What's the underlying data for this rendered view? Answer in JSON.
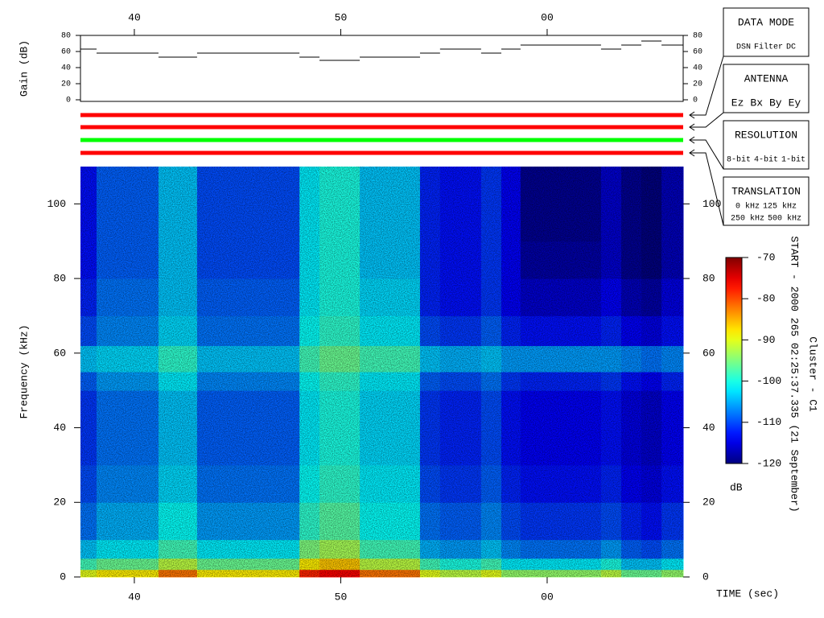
{
  "chart_data": [
    {
      "type": "step",
      "ylabel": "Gain (dB)",
      "x": [
        37.39,
        38.17,
        41.17,
        43.04,
        48.0,
        48.97,
        50.92,
        53.84,
        54.81,
        56.8,
        57.78,
        58.71,
        62.61,
        63.59,
        64.56,
        65.54
      ],
      "values": [
        63,
        58,
        53,
        58,
        53,
        49,
        53,
        58,
        63,
        58,
        63,
        68,
        63,
        68,
        73,
        68
      ],
      "xlim": [
        37.39,
        66.59
      ],
      "xticks": [
        40,
        50,
        {
          "value": 60,
          "label": "00"
        }
      ],
      "ylim": [
        0,
        80
      ],
      "yticks": [
        0,
        20,
        40,
        60,
        80
      ],
      "color": "#000000"
    },
    {
      "type": "heatmap",
      "ylabel": "Frequency (kHz)",
      "xlabel": "TIME (sec)",
      "x_edges": [
        37.39,
        38.17,
        41.17,
        43.04,
        48.0,
        48.97,
        50.92,
        53.84,
        54.81,
        56.8,
        57.78,
        58.71,
        62.61,
        63.59,
        64.56,
        65.54,
        66.59
      ],
      "y_edges": [
        0,
        2,
        5,
        10,
        20,
        30,
        40,
        50,
        55,
        62,
        70,
        80,
        90,
        110
      ],
      "z": [
        [
          -90,
          -88,
          -82,
          -88,
          -78,
          -76,
          -82,
          -90,
          -92,
          -90,
          -94,
          -94,
          -92,
          -96,
          -96,
          -94
        ],
        [
          -98,
          -96,
          -92,
          -96,
          -88,
          -86,
          -92,
          -98,
          -100,
          -98,
          -102,
          -102,
          -100,
          -104,
          -104,
          -102
        ],
        [
          -104,
          -102,
          -98,
          -102,
          -95,
          -93,
          -98,
          -105,
          -106,
          -104,
          -107,
          -108,
          -106,
          -109,
          -110,
          -108
        ],
        [
          -108,
          -105,
          -101,
          -106,
          -99,
          -97,
          -101,
          -108,
          -109,
          -107,
          -110,
          -111,
          -110,
          -112,
          -113,
          -111
        ],
        [
          -110,
          -107,
          -103,
          -108,
          -101,
          -99,
          -102,
          -110,
          -111,
          -109,
          -112,
          -113,
          -112,
          -114,
          -115,
          -113
        ],
        [
          -111,
          -108,
          -104,
          -109,
          -102,
          -100,
          -103,
          -111,
          -112,
          -110,
          -113,
          -114,
          -113,
          -115,
          -116,
          -114
        ],
        [
          -111,
          -108,
          -104,
          -109,
          -102,
          -100,
          -103,
          -111,
          -112,
          -110,
          -113,
          -114,
          -113,
          -115,
          -116,
          -114
        ],
        [
          -109,
          -106,
          -102,
          -107,
          -101,
          -99,
          -102,
          -109,
          -110,
          -108,
          -111,
          -112,
          -111,
          -113,
          -114,
          -112
        ],
        [
          -104,
          -103,
          -99,
          -104,
          -98,
          -96,
          -98,
          -104,
          -105,
          -104,
          -106,
          -106,
          -106,
          -107,
          -108,
          -107
        ],
        [
          -110,
          -107,
          -103,
          -108,
          -101,
          -99,
          -102,
          -110,
          -111,
          -109,
          -112,
          -113,
          -112,
          -114,
          -115,
          -113
        ],
        [
          -112,
          -108,
          -104,
          -109,
          -102,
          -100,
          -103,
          -112,
          -113,
          -111,
          -114,
          -116,
          -114,
          -117,
          -118,
          -115
        ],
        [
          -113,
          -109,
          -104,
          -110,
          -102,
          -100,
          -104,
          -112,
          -113,
          -111,
          -114,
          -118,
          -116,
          -119,
          -120,
          -117
        ],
        [
          -113,
          -109,
          -104,
          -110,
          -102,
          -100,
          -104,
          -112,
          -113,
          -111,
          -114,
          -119,
          -116,
          -119,
          -120,
          -117
        ]
      ],
      "xlim": [
        37.39,
        66.59
      ],
      "xticks": [
        40,
        50,
        {
          "value": 60,
          "label": "00"
        }
      ],
      "ylim": [
        0,
        110
      ],
      "yticks": [
        0,
        20,
        40,
        60,
        80,
        100
      ],
      "clim": [
        -120,
        -70
      ],
      "cticks": [
        -70,
        -80,
        -90,
        -100,
        -110,
        -120
      ],
      "clabel": "dB",
      "colormap": "jet"
    }
  ],
  "indicators": [
    {
      "color": "#ff0000"
    },
    {
      "color": "#ff0000"
    },
    {
      "color": "#00ff00"
    },
    {
      "color": "#ff0000"
    }
  ],
  "panels": [
    {
      "title": "DATA MODE",
      "rows": [
        [
          {
            "label": "DSN",
            "color": "#ff0000"
          },
          {
            "label": "Filter",
            "color": "#00dd00"
          },
          {
            "label": "DC",
            "color": "#0000ff"
          }
        ]
      ]
    },
    {
      "title": "ANTENNA",
      "rows": [
        [
          {
            "label": "Ez",
            "color": "#ff0000"
          },
          {
            "label": "Bx",
            "color": "#00dd00"
          },
          {
            "label": "By",
            "color": "#0000ff"
          },
          {
            "label": "Ey",
            "color": "#000000"
          }
        ]
      ]
    },
    {
      "title": "RESOLUTION",
      "rows": [
        [
          {
            "label": "8-bit",
            "color": "#ff0000"
          },
          {
            "label": "4-bit",
            "color": "#00dd00"
          },
          {
            "label": "1-bit",
            "color": "#0000ff"
          }
        ]
      ]
    },
    {
      "title": "TRANSLATION",
      "rows": [
        [
          {
            "label": "0 kHz",
            "color": "#ff0000"
          },
          {
            "label": "125 kHz",
            "color": "#00dd00"
          }
        ],
        [
          {
            "label": "250 kHz",
            "color": "#0000ff"
          },
          {
            "label": "500 kHz",
            "color": "#000000"
          }
        ]
      ]
    }
  ],
  "side_text": [
    "START - 2000 265 02:25:37.335 (21 September)",
    "Cluster - C1"
  ]
}
